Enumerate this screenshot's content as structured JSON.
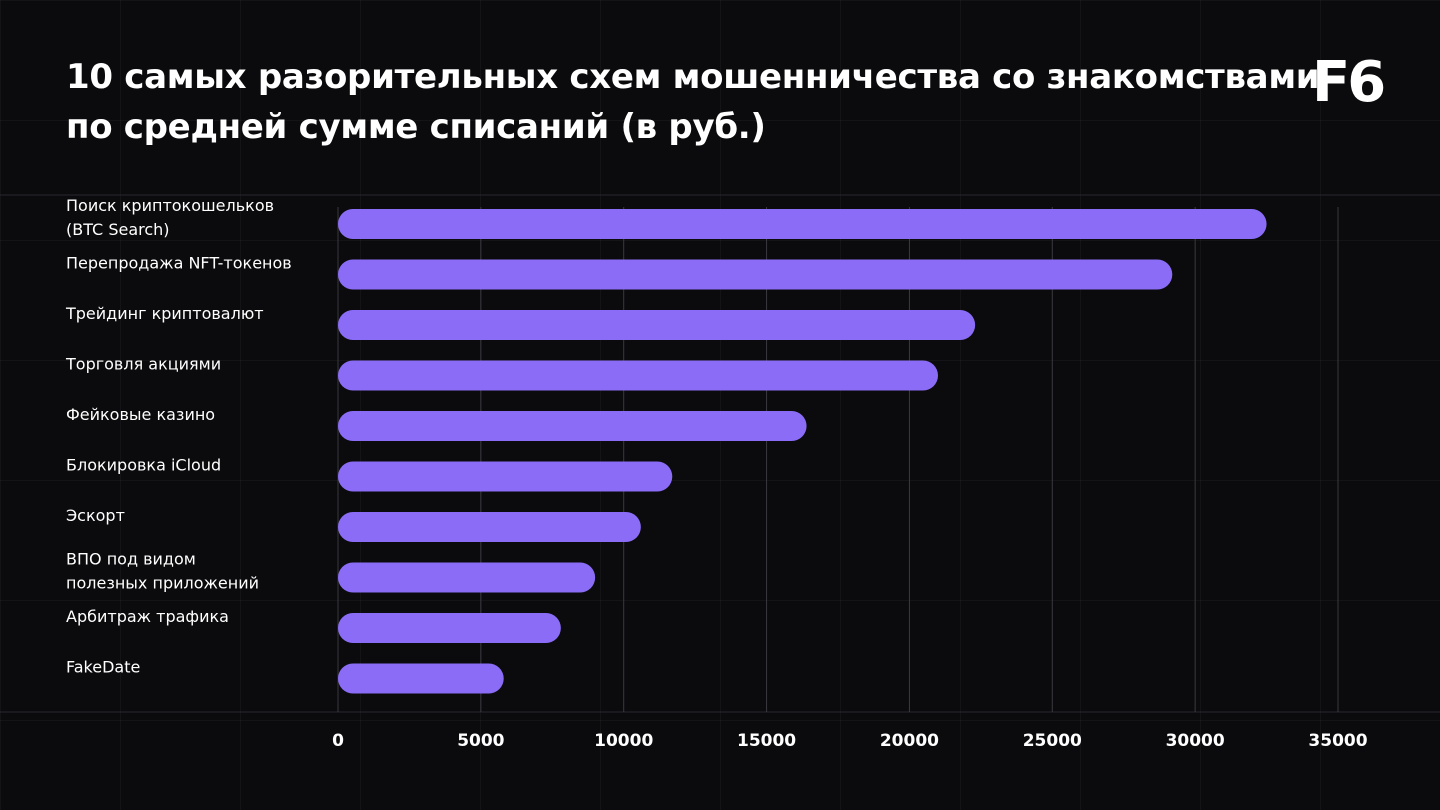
{
  "header": {
    "title_lines": [
      "10 самых разорительных схем мошенничества со знакомствами",
      "по средней сумме списаний (в руб.)"
    ],
    "logo_text": "F6"
  },
  "colors": {
    "background": "#0b0b0d",
    "bar": "#8b6cf6",
    "text": "#ffffff",
    "gridline": "#3a3a40"
  },
  "chart_data": {
    "type": "bar",
    "orientation": "horizontal",
    "title": "10 самых разорительных схем мошенничества со знакомствами по средней сумме списаний (в руб.)",
    "categories": [
      [
        "Поиск криптокошельков",
        "(BTC Search)"
      ],
      [
        "Перепродажа NFT-токенов"
      ],
      [
        "Трейдинг криптовалют"
      ],
      [
        "Торговля акциями"
      ],
      [
        "Фейковые казино"
      ],
      [
        "Блокировка iCloud"
      ],
      [
        "Эскорт"
      ],
      [
        "ВПО под видом",
        "полезных приложений"
      ],
      [
        "Арбитраж трафика"
      ],
      [
        "FakeDate"
      ]
    ],
    "values": [
      32500,
      29200,
      22300,
      21000,
      16400,
      11700,
      10600,
      9000,
      7800,
      5800
    ],
    "xlim": [
      0,
      35000
    ],
    "xticks": [
      "0",
      "5000",
      "10000",
      "15000",
      "20000",
      "25000",
      "30000",
      "35000"
    ],
    "grid": "vertical",
    "legend": "none"
  }
}
